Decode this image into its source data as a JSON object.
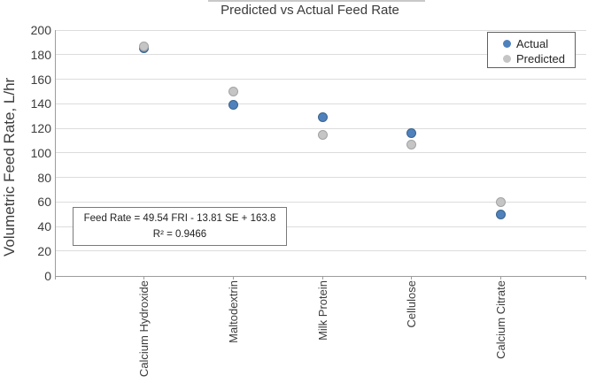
{
  "chart_data": {
    "type": "scatter",
    "title": "Predicted vs Actual Feed Rate",
    "xlabel": "",
    "ylabel": "Volumetric Feed Rate, L/hr",
    "ylim": [
      0,
      200
    ],
    "yticks": [
      0,
      20,
      40,
      60,
      80,
      100,
      120,
      140,
      160,
      180,
      200
    ],
    "grid": true,
    "legend_position": "top-right",
    "categories": [
      "Calcium Hydroxide",
      "Maltodextrin",
      "Milk Protein",
      "Cellulose",
      "Calcium Citrate"
    ],
    "series": [
      {
        "name": "Actual",
        "color": "#4f81bd",
        "values": [
          185,
          139,
          129,
          116,
          50
        ]
      },
      {
        "name": "Predicted",
        "color": "#c5c5c5",
        "values": [
          187,
          150,
          115,
          107,
          60
        ]
      }
    ],
    "annotation": {
      "line1": "Feed Rate = 49.54 FRI - 13.81 SE + 163.8",
      "line2": "R² = 0.9466"
    }
  },
  "colors": {
    "actual": "#4f81bd",
    "predicted": "#c5c5c5",
    "gridline": "#dcdcdc",
    "axis": "#9c9c9c"
  }
}
